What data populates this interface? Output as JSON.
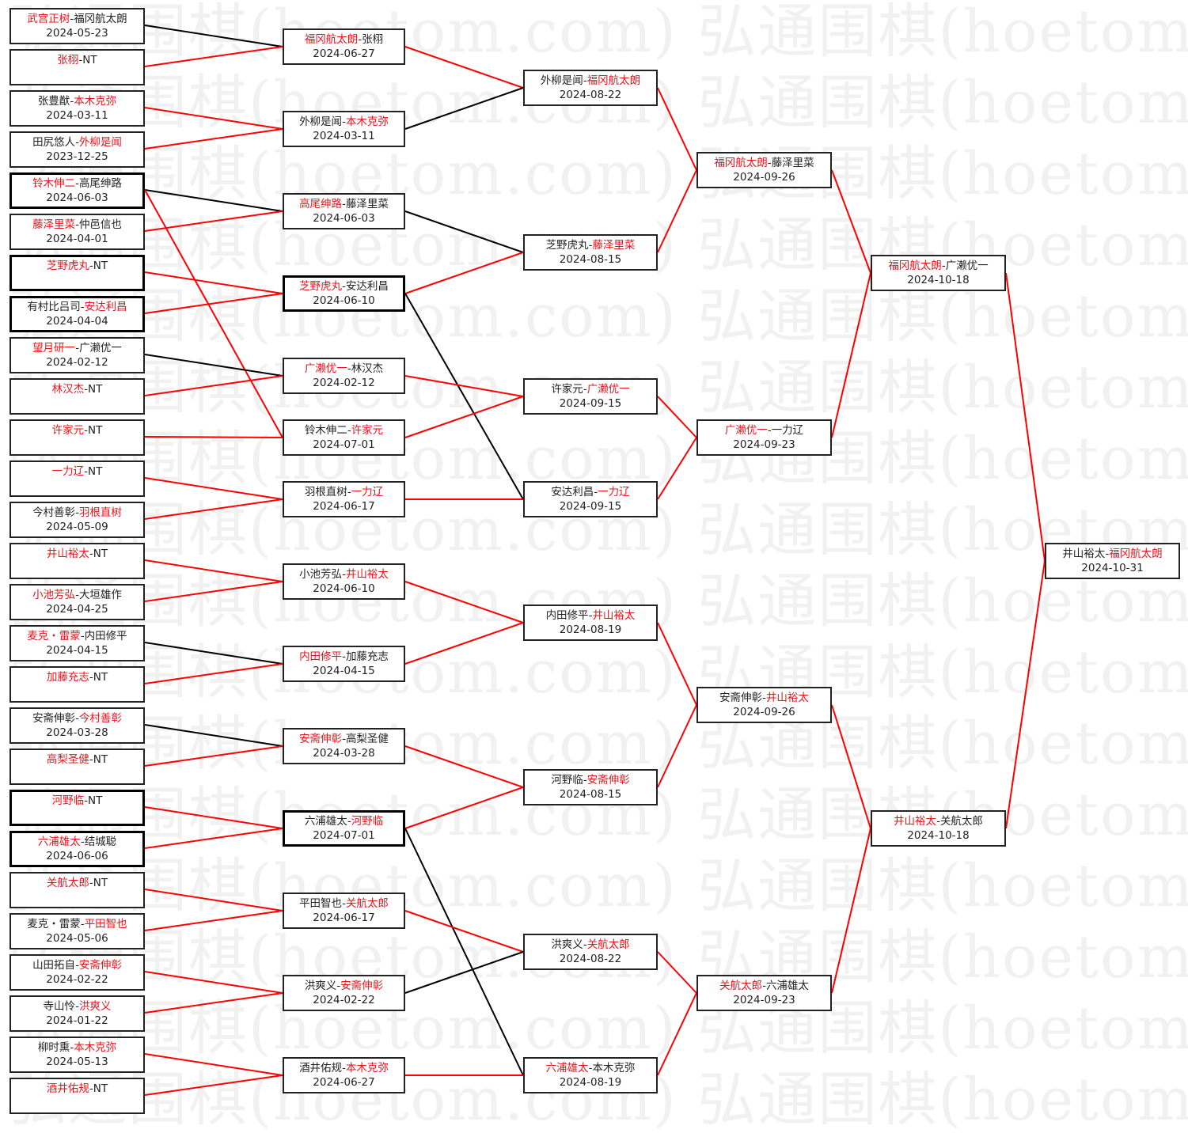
{
  "watermark": "弘通围棋(hoetom.com)",
  "separator": "-",
  "colors": {
    "winner_text": "#e8141c",
    "red_line": "#ff0000",
    "black_line": "#000000",
    "border": "#222222"
  },
  "rounds": [
    [
      {
        "players": [
          "武宫正树",
          "福冈航太朗"
        ],
        "red": 0,
        "date": "2024-05-23"
      },
      {
        "players": [
          "张栩",
          "NT"
        ],
        "red": 0,
        "date": ""
      },
      {
        "players": [
          "张豊猷",
          "本木克弥"
        ],
        "red": 1,
        "date": "2024-03-11"
      },
      {
        "players": [
          "田尻悠人",
          "外柳是闻"
        ],
        "red": 1,
        "date": "2023-12-25"
      },
      {
        "players": [
          "铃木伸二",
          "高尾绅路"
        ],
        "red": 0,
        "date": "2024-06-03",
        "thick": true
      },
      {
        "players": [
          "藤泽里菜",
          "仲邑信也"
        ],
        "red": 0,
        "date": "2024-04-01"
      },
      {
        "players": [
          "芝野虎丸",
          "NT"
        ],
        "red": 0,
        "date": "",
        "thick": true
      },
      {
        "players": [
          "有村比吕司",
          "安达利昌"
        ],
        "red": 1,
        "date": "2024-04-04",
        "thick": true
      },
      {
        "players": [
          "望月研一",
          "广濑优一"
        ],
        "red": 0,
        "date": "2024-02-12"
      },
      {
        "players": [
          "林汉杰",
          "NT"
        ],
        "red": 0,
        "date": ""
      },
      {
        "players": [
          "许家元",
          "NT"
        ],
        "red": 0,
        "date": ""
      },
      {
        "players": [
          "一力辽",
          "NT"
        ],
        "red": 0,
        "date": ""
      },
      {
        "players": [
          "今村善彰",
          "羽根直树"
        ],
        "red": 1,
        "date": "2024-05-09"
      },
      {
        "players": [
          "井山裕太",
          "NT"
        ],
        "red": 0,
        "date": ""
      },
      {
        "players": [
          "小池芳弘",
          "大垣雄作"
        ],
        "red": 0,
        "date": "2024-04-25"
      },
      {
        "players": [
          "麦克・雷蒙",
          "内田修平"
        ],
        "red": 0,
        "date": "2024-04-15"
      },
      {
        "players": [
          "加藤充志",
          "NT"
        ],
        "red": 0,
        "date": ""
      },
      {
        "players": [
          "安斋伸彰",
          "今村善彰"
        ],
        "red": 1,
        "date": "2024-03-28"
      },
      {
        "players": [
          "高梨圣健",
          "NT"
        ],
        "red": 0,
        "date": ""
      },
      {
        "players": [
          "河野临",
          "NT"
        ],
        "red": 0,
        "date": "",
        "thick": true
      },
      {
        "players": [
          "六浦雄太",
          "结城聪"
        ],
        "red": 0,
        "date": "2024-06-06",
        "thick": true
      },
      {
        "players": [
          "关航太郎",
          "NT"
        ],
        "red": 0,
        "date": ""
      },
      {
        "players": [
          "麦克・雷蒙",
          "平田智也"
        ],
        "red": 1,
        "date": "2024-05-06"
      },
      {
        "players": [
          "山田拓自",
          "安斋伸彰"
        ],
        "red": 1,
        "date": "2024-02-22"
      },
      {
        "players": [
          "寺山怜",
          "洪爽义"
        ],
        "red": 1,
        "date": "2024-01-22"
      },
      {
        "players": [
          "柳时熏",
          "本木克弥"
        ],
        "red": 1,
        "date": "2024-05-13"
      },
      {
        "players": [
          "酒井佑规",
          "NT"
        ],
        "red": 0,
        "date": ""
      }
    ],
    [
      {
        "players": [
          "福冈航太朗",
          "张栩"
        ],
        "red": 0,
        "date": "2024-06-27"
      },
      {
        "players": [
          "外柳是闻",
          "本木克弥"
        ],
        "red": 1,
        "date": "2024-03-11"
      },
      {
        "players": [
          "高尾绅路",
          "藤泽里菜"
        ],
        "red": 0,
        "date": "2024-06-03"
      },
      {
        "players": [
          "芝野虎丸",
          "安达利昌"
        ],
        "red": 0,
        "date": "2024-06-10",
        "thick": true
      },
      {
        "players": [
          "广濑优一",
          "林汉杰"
        ],
        "red": 0,
        "date": "2024-02-12"
      },
      {
        "players": [
          "铃木伸二",
          "许家元"
        ],
        "red": 1,
        "date": "2024-07-01"
      },
      {
        "players": [
          "羽根直树",
          "一力辽"
        ],
        "red": 1,
        "date": "2024-06-17"
      },
      {
        "players": [
          "小池芳弘",
          "井山裕太"
        ],
        "red": 1,
        "date": "2024-06-10"
      },
      {
        "players": [
          "内田修平",
          "加藤充志"
        ],
        "red": 0,
        "date": "2024-04-15"
      },
      {
        "players": [
          "安斋伸彰",
          "高梨圣健"
        ],
        "red": 0,
        "date": "2024-03-28"
      },
      {
        "players": [
          "六浦雄太",
          "河野临"
        ],
        "red": 1,
        "date": "2024-07-01",
        "thick": true
      },
      {
        "players": [
          "平田智也",
          "关航太郎"
        ],
        "red": 1,
        "date": "2024-06-17"
      },
      {
        "players": [
          "洪爽义",
          "安斋伸彰"
        ],
        "red": 1,
        "date": "2024-02-22"
      },
      {
        "players": [
          "酒井佑规",
          "本木克弥"
        ],
        "red": 1,
        "date": "2024-06-27"
      }
    ],
    [
      {
        "players": [
          "外柳是闻",
          "福冈航太朗"
        ],
        "red": 1,
        "date": "2024-08-22"
      },
      {
        "players": [
          "芝野虎丸",
          "藤泽里菜"
        ],
        "red": 1,
        "date": "2024-08-15"
      },
      {
        "players": [
          "许家元",
          "广濑优一"
        ],
        "red": 1,
        "date": "2024-09-15"
      },
      {
        "players": [
          "安达利昌",
          "一力辽"
        ],
        "red": 1,
        "date": "2024-09-15"
      },
      {
        "players": [
          "内田修平",
          "井山裕太"
        ],
        "red": 1,
        "date": "2024-08-19"
      },
      {
        "players": [
          "河野临",
          "安斋伸彰"
        ],
        "red": 1,
        "date": "2024-08-15"
      },
      {
        "players": [
          "洪爽义",
          "关航太郎"
        ],
        "red": 1,
        "date": "2024-08-22"
      },
      {
        "players": [
          "六浦雄太",
          "本木克弥"
        ],
        "red": 0,
        "date": "2024-08-19"
      }
    ],
    [
      {
        "players": [
          "福冈航太朗",
          "藤泽里菜"
        ],
        "red": 0,
        "date": "2024-09-26"
      },
      {
        "players": [
          "广濑优一",
          "一力辽"
        ],
        "red": 0,
        "date": "2024-09-23"
      },
      {
        "players": [
          "安斋伸彰",
          "井山裕太"
        ],
        "red": 1,
        "date": "2024-09-26"
      },
      {
        "players": [
          "关航太郎",
          "六浦雄太"
        ],
        "red": 0,
        "date": "2024-09-23"
      }
    ],
    [
      {
        "players": [
          "福冈航太朗",
          "广濑优一"
        ],
        "red": 0,
        "date": "2024-10-18"
      },
      {
        "players": [
          "井山裕太",
          "关航太郎"
        ],
        "red": 0,
        "date": "2024-10-18"
      }
    ],
    [
      {
        "players": [
          "井山裕太",
          "福冈航太朗"
        ],
        "red": 1,
        "date": "2024-10-31"
      }
    ]
  ],
  "links": [
    {
      "from": [
        0,
        0
      ],
      "to": [
        1,
        0
      ],
      "color": "black"
    },
    {
      "from": [
        0,
        1
      ],
      "to": [
        1,
        0
      ],
      "color": "red"
    },
    {
      "from": [
        0,
        2
      ],
      "to": [
        1,
        1
      ],
      "color": "red"
    },
    {
      "from": [
        0,
        3
      ],
      "to": [
        1,
        1
      ],
      "color": "red"
    },
    {
      "from": [
        0,
        4
      ],
      "to": [
        1,
        2
      ],
      "color": "black"
    },
    {
      "from": [
        0,
        4
      ],
      "to": [
        1,
        5
      ],
      "color": "red"
    },
    {
      "from": [
        0,
        5
      ],
      "to": [
        1,
        2
      ],
      "color": "red"
    },
    {
      "from": [
        0,
        6
      ],
      "to": [
        1,
        3
      ],
      "color": "red"
    },
    {
      "from": [
        0,
        7
      ],
      "to": [
        1,
        3
      ],
      "color": "red"
    },
    {
      "from": [
        0,
        8
      ],
      "to": [
        1,
        4
      ],
      "color": "black"
    },
    {
      "from": [
        0,
        9
      ],
      "to": [
        1,
        4
      ],
      "color": "red"
    },
    {
      "from": [
        0,
        10
      ],
      "to": [
        1,
        5
      ],
      "color": "red"
    },
    {
      "from": [
        0,
        11
      ],
      "to": [
        1,
        6
      ],
      "color": "red"
    },
    {
      "from": [
        0,
        12
      ],
      "to": [
        1,
        6
      ],
      "color": "red"
    },
    {
      "from": [
        0,
        13
      ],
      "to": [
        1,
        7
      ],
      "color": "red"
    },
    {
      "from": [
        0,
        14
      ],
      "to": [
        1,
        7
      ],
      "color": "red"
    },
    {
      "from": [
        0,
        15
      ],
      "to": [
        1,
        8
      ],
      "color": "black"
    },
    {
      "from": [
        0,
        16
      ],
      "to": [
        1,
        8
      ],
      "color": "red"
    },
    {
      "from": [
        0,
        17
      ],
      "to": [
        1,
        9
      ],
      "color": "black"
    },
    {
      "from": [
        0,
        18
      ],
      "to": [
        1,
        9
      ],
      "color": "red"
    },
    {
      "from": [
        0,
        19
      ],
      "to": [
        1,
        10
      ],
      "color": "red"
    },
    {
      "from": [
        0,
        20
      ],
      "to": [
        1,
        10
      ],
      "color": "red"
    },
    {
      "from": [
        0,
        21
      ],
      "to": [
        1,
        11
      ],
      "color": "red"
    },
    {
      "from": [
        0,
        22
      ],
      "to": [
        1,
        11
      ],
      "color": "red"
    },
    {
      "from": [
        0,
        23
      ],
      "to": [
        1,
        12
      ],
      "color": "red"
    },
    {
      "from": [
        0,
        24
      ],
      "to": [
        1,
        12
      ],
      "color": "red"
    },
    {
      "from": [
        0,
        25
      ],
      "to": [
        1,
        13
      ],
      "color": "red"
    },
    {
      "from": [
        0,
        26
      ],
      "to": [
        1,
        13
      ],
      "color": "red"
    },
    {
      "from": [
        1,
        0
      ],
      "to": [
        2,
        0
      ],
      "color": "red"
    },
    {
      "from": [
        1,
        1
      ],
      "to": [
        2,
        0
      ],
      "color": "black"
    },
    {
      "from": [
        1,
        2
      ],
      "to": [
        2,
        1
      ],
      "color": "black"
    },
    {
      "from": [
        1,
        3
      ],
      "to": [
        2,
        1
      ],
      "color": "red"
    },
    {
      "from": [
        1,
        3
      ],
      "to": [
        2,
        3
      ],
      "color": "black"
    },
    {
      "from": [
        1,
        4
      ],
      "to": [
        2,
        2
      ],
      "color": "red"
    },
    {
      "from": [
        1,
        5
      ],
      "to": [
        2,
        2
      ],
      "color": "red"
    },
    {
      "from": [
        1,
        6
      ],
      "to": [
        2,
        3
      ],
      "color": "red"
    },
    {
      "from": [
        1,
        7
      ],
      "to": [
        2,
        4
      ],
      "color": "red"
    },
    {
      "from": [
        1,
        8
      ],
      "to": [
        2,
        4
      ],
      "color": "red"
    },
    {
      "from": [
        1,
        9
      ],
      "to": [
        2,
        5
      ],
      "color": "red"
    },
    {
      "from": [
        1,
        10
      ],
      "to": [
        2,
        5
      ],
      "color": "red"
    },
    {
      "from": [
        1,
        10
      ],
      "to": [
        2,
        7
      ],
      "color": "black"
    },
    {
      "from": [
        1,
        11
      ],
      "to": [
        2,
        6
      ],
      "color": "red"
    },
    {
      "from": [
        1,
        12
      ],
      "to": [
        2,
        6
      ],
      "color": "black"
    },
    {
      "from": [
        1,
        13
      ],
      "to": [
        2,
        7
      ],
      "color": "red"
    },
    {
      "from": [
        2,
        0
      ],
      "to": [
        3,
        0
      ],
      "color": "red"
    },
    {
      "from": [
        2,
        1
      ],
      "to": [
        3,
        0
      ],
      "color": "red"
    },
    {
      "from": [
        2,
        2
      ],
      "to": [
        3,
        1
      ],
      "color": "red"
    },
    {
      "from": [
        2,
        3
      ],
      "to": [
        3,
        1
      ],
      "color": "red"
    },
    {
      "from": [
        2,
        4
      ],
      "to": [
        3,
        2
      ],
      "color": "red"
    },
    {
      "from": [
        2,
        5
      ],
      "to": [
        3,
        2
      ],
      "color": "red"
    },
    {
      "from": [
        2,
        6
      ],
      "to": [
        3,
        3
      ],
      "color": "red"
    },
    {
      "from": [
        2,
        7
      ],
      "to": [
        3,
        3
      ],
      "color": "red"
    },
    {
      "from": [
        3,
        0
      ],
      "to": [
        4,
        0
      ],
      "color": "red"
    },
    {
      "from": [
        3,
        1
      ],
      "to": [
        4,
        0
      ],
      "color": "red"
    },
    {
      "from": [
        3,
        2
      ],
      "to": [
        4,
        1
      ],
      "color": "red"
    },
    {
      "from": [
        3,
        3
      ],
      "to": [
        4,
        1
      ],
      "color": "red"
    },
    {
      "from": [
        4,
        0
      ],
      "to": [
        5,
        0
      ],
      "color": "red"
    },
    {
      "from": [
        4,
        1
      ],
      "to": [
        5,
        0
      ],
      "color": "red"
    }
  ]
}
